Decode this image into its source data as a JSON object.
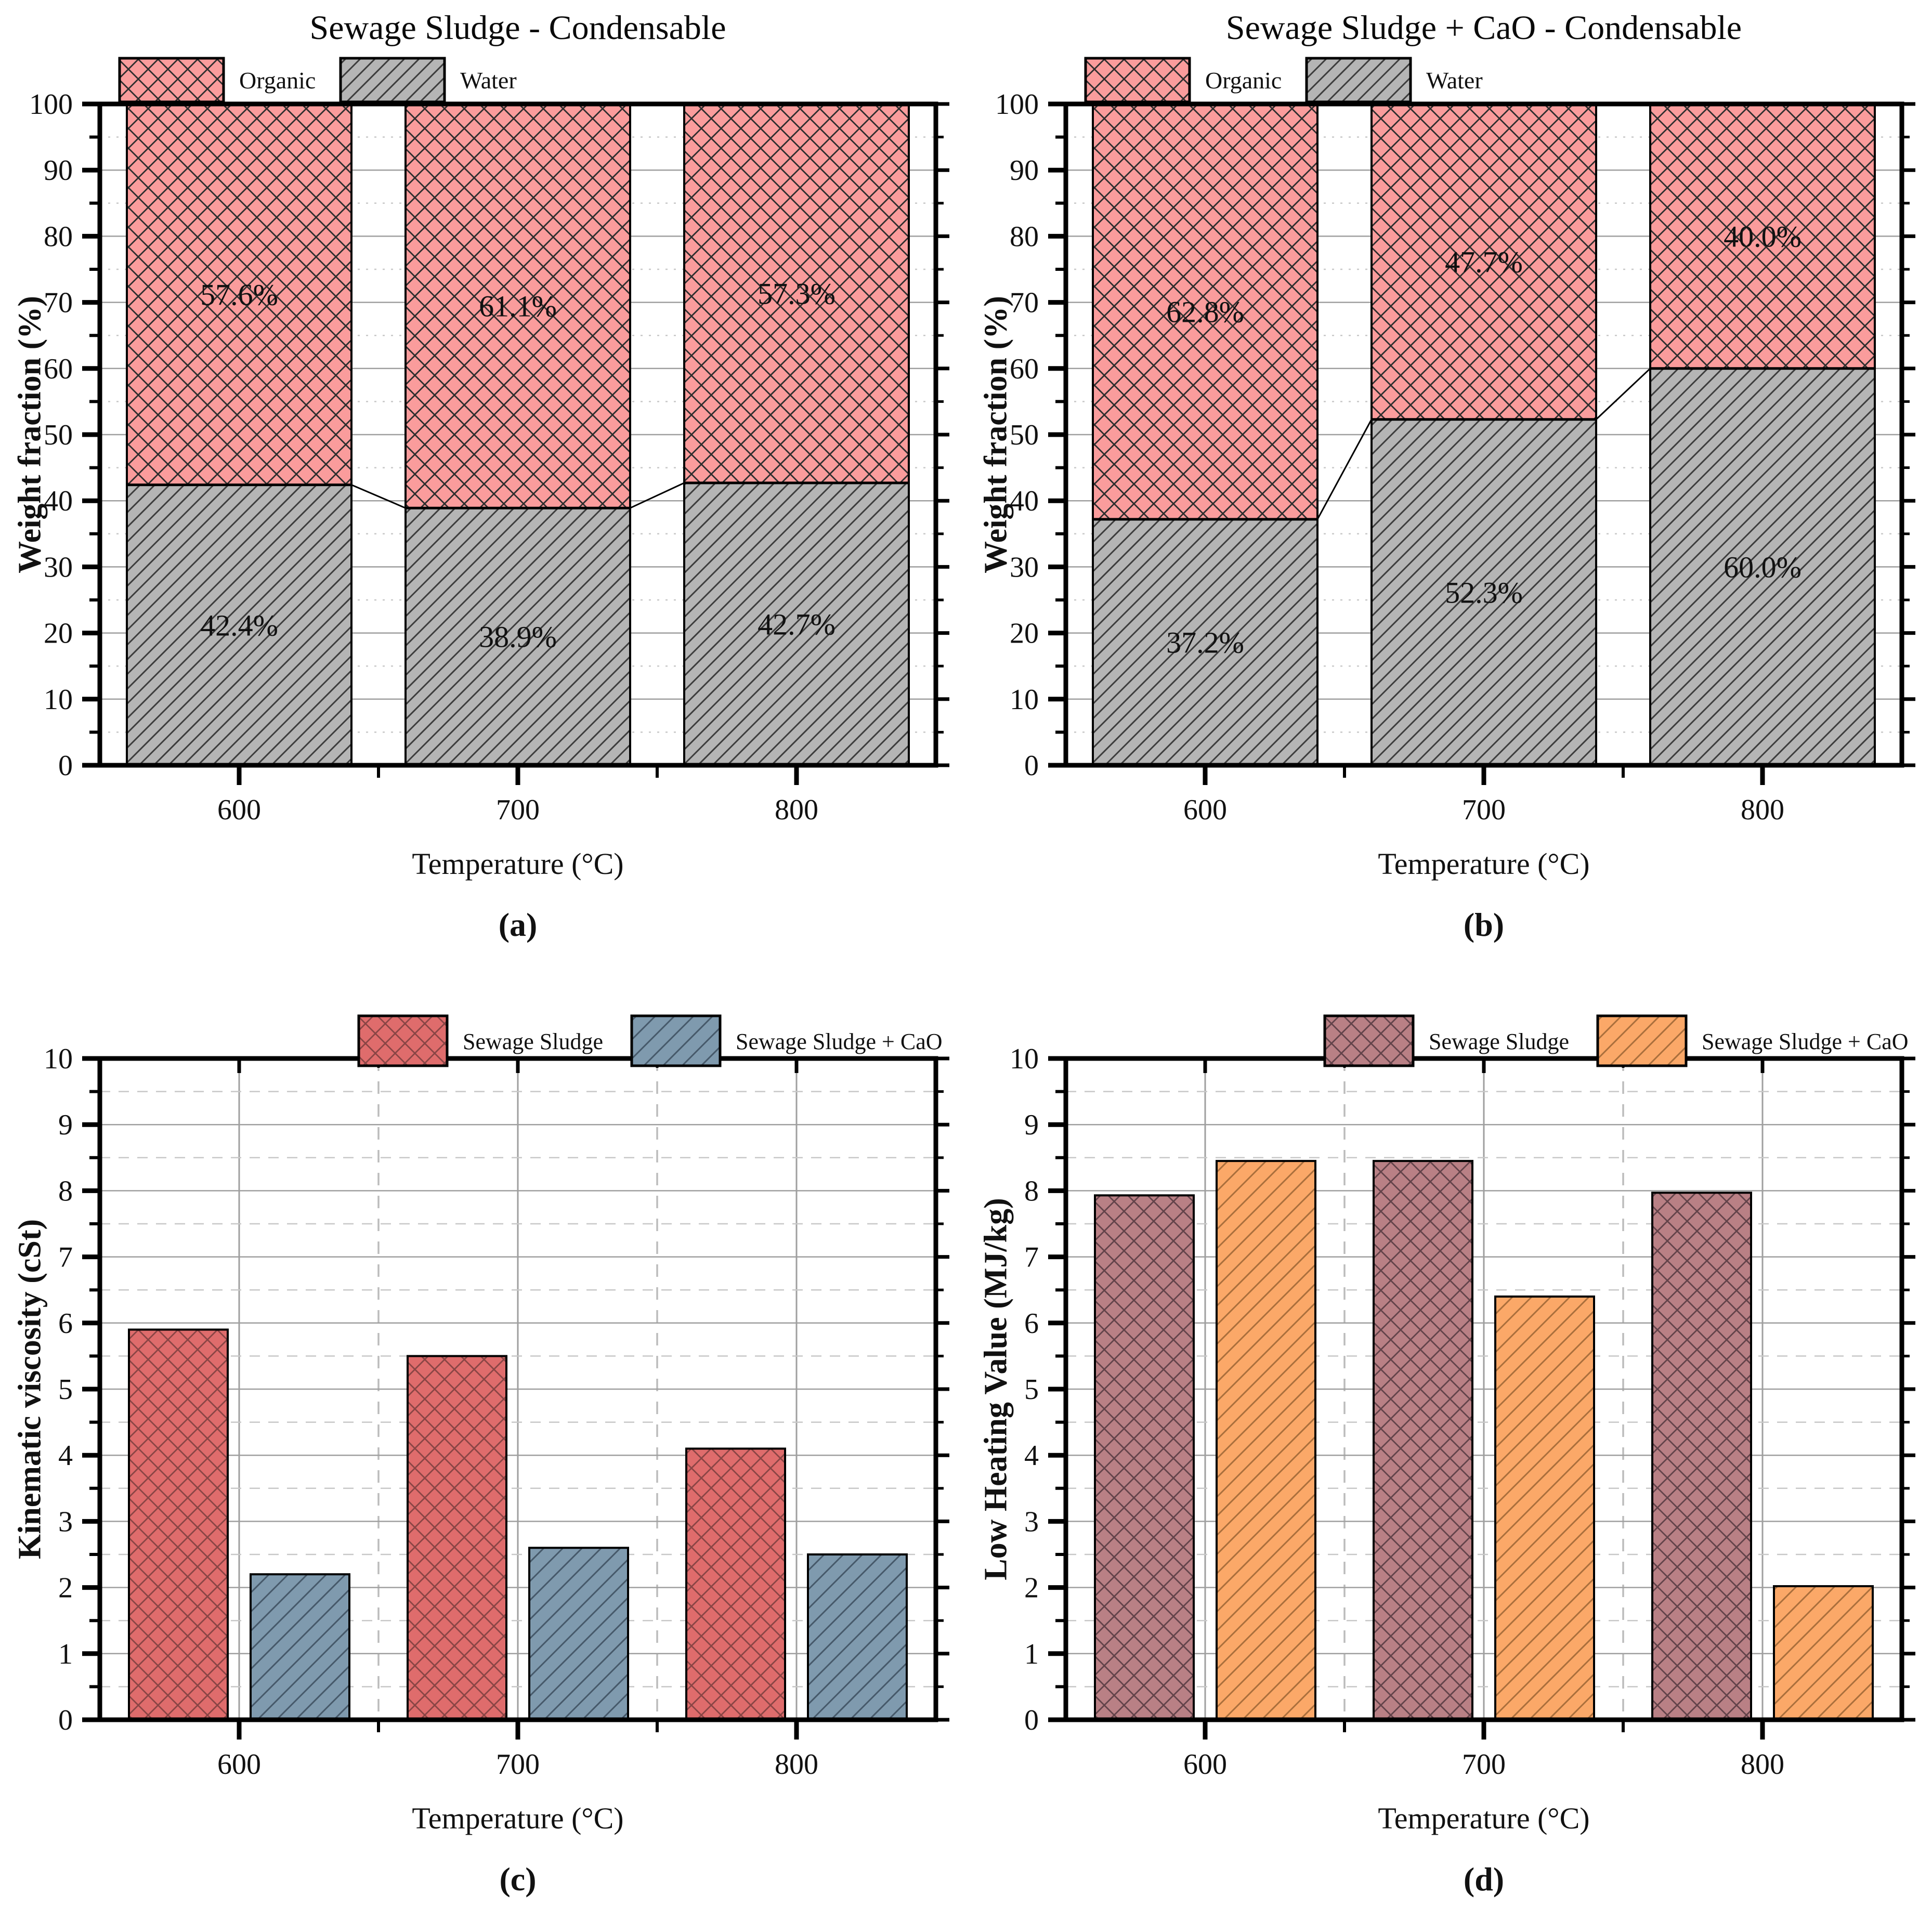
{
  "page": {
    "background": "#ffffff"
  },
  "colors": {
    "axis": "#000000",
    "grid_major": "#9f9f9f",
    "grid_minor": "#c8c8c8",
    "connector": "#000000",
    "organic_pink": "#fa9c9c",
    "water_gray": "#b5b5b5",
    "viscosity_red": "#df6c6c",
    "viscosity_blue": "#7f9aae",
    "lhv_maroon": "#b98085",
    "lhv_orange": "#fba868"
  },
  "chart_data": [
    {
      "type": "bar",
      "variant": "stacked",
      "title": "Sewage Sludge - Condensable",
      "caption": "(a)",
      "xlabel": "Temperature (°C)",
      "ylabel": "Weight fraction (%)",
      "categories": [
        "600",
        "700",
        "800"
      ],
      "ylim": [
        0,
        100
      ],
      "ymajor_step": 10,
      "yminor_step": 5,
      "yticks": [
        0,
        10,
        20,
        30,
        40,
        50,
        60,
        70,
        80,
        90,
        100
      ],
      "grid": {
        "h_major": "solid",
        "h_minor": "dotted",
        "vertical": false
      },
      "legend_position": "top-left",
      "legend": [
        {
          "label": "Organic",
          "series": 1
        },
        {
          "label": "Water",
          "series": 0
        }
      ],
      "connectors": true,
      "series": [
        {
          "name": "Water",
          "values": [
            42.4,
            38.9,
            42.7
          ],
          "bar_labels": [
            "42.4%",
            "38.9%",
            "42.7%"
          ],
          "fill": "#b5b5b5",
          "hatch": "diag",
          "hatch_color": "#3d3d3d",
          "hatch_gap": 20
        },
        {
          "name": "Organic",
          "values": [
            57.6,
            61.1,
            57.3
          ],
          "bar_labels": [
            "57.6%",
            "61.1%",
            "57.3%"
          ],
          "fill": "#fa9c9c",
          "hatch": "cross",
          "hatch_color": "#2e2e2e",
          "hatch_gap": 38
        }
      ]
    },
    {
      "type": "bar",
      "variant": "stacked",
      "title": "Sewage Sludge + CaO - Condensable",
      "caption": "(b)",
      "xlabel": "Temperature (°C)",
      "ylabel": "Weight fraction (%)",
      "categories": [
        "600",
        "700",
        "800"
      ],
      "ylim": [
        0,
        100
      ],
      "ymajor_step": 10,
      "yminor_step": 5,
      "yticks": [
        0,
        10,
        20,
        30,
        40,
        50,
        60,
        70,
        80,
        90,
        100
      ],
      "grid": {
        "h_major": "solid",
        "h_minor": "dotted",
        "vertical": false
      },
      "legend_position": "top-left",
      "legend": [
        {
          "label": "Organic",
          "series": 1
        },
        {
          "label": "Water",
          "series": 0
        }
      ],
      "connectors": true,
      "series": [
        {
          "name": "Water",
          "values": [
            37.2,
            52.3,
            60.0
          ],
          "bar_labels": [
            "37.2%",
            "52.3%",
            "60.0%"
          ],
          "fill": "#b5b5b5",
          "hatch": "diag",
          "hatch_color": "#3d3d3d",
          "hatch_gap": 20
        },
        {
          "name": "Organic",
          "values": [
            62.8,
            47.7,
            40.0
          ],
          "bar_labels": [
            "62.8%",
            "47.7%",
            "40.0%"
          ],
          "fill": "#fa9c9c",
          "hatch": "cross",
          "hatch_color": "#2e2e2e",
          "hatch_gap": 38
        }
      ]
    },
    {
      "type": "bar",
      "variant": "grouped",
      "title": "",
      "caption": "(c)",
      "xlabel": "Temperature (°C)",
      "ylabel": "Kinematic viscosity (cSt)",
      "categories": [
        "600",
        "700",
        "800"
      ],
      "ylim": [
        0,
        10
      ],
      "ymajor_step": 1,
      "yminor_step": 0.5,
      "yticks": [
        0,
        1,
        2,
        3,
        4,
        5,
        6,
        7,
        8,
        9,
        10
      ],
      "grid": {
        "h_major": "solid",
        "h_minor": "dashed",
        "vertical": true
      },
      "legend_position": "top-right",
      "legend": [
        {
          "label": "Sewage Sludge",
          "series": 0
        },
        {
          "label": "Sewage Sludge + CaO",
          "series": 1
        }
      ],
      "connectors": false,
      "series": [
        {
          "name": "Sewage Sludge",
          "values": [
            5.9,
            5.5,
            4.1
          ],
          "fill": "#df6c6c",
          "hatch": "cross",
          "hatch_color": "#8a4545",
          "hatch_gap": 38
        },
        {
          "name": "Sewage Sludge + CaO",
          "values": [
            2.2,
            2.6,
            2.5
          ],
          "fill": "#7f9aae",
          "hatch": "diag",
          "hatch_color": "#46596a",
          "hatch_gap": 26
        }
      ]
    },
    {
      "type": "bar",
      "variant": "grouped",
      "title": "",
      "caption": "(d)",
      "xlabel": "Temperature (°C)",
      "ylabel": "Low Heating Value (MJ/kg)",
      "categories": [
        "600",
        "700",
        "800"
      ],
      "ylim": [
        0,
        10
      ],
      "ymajor_step": 1,
      "yminor_step": 0.5,
      "yticks": [
        0,
        1,
        2,
        3,
        4,
        5,
        6,
        7,
        8,
        9,
        10
      ],
      "grid": {
        "h_major": "solid",
        "h_minor": "dashed",
        "vertical": true
      },
      "legend_position": "top-right",
      "legend": [
        {
          "label": "Sewage Sludge",
          "series": 0
        },
        {
          "label": "Sewage Sludge + CaO",
          "series": 1
        }
      ],
      "connectors": false,
      "series": [
        {
          "name": "Sewage Sludge",
          "values": [
            7.93,
            8.45,
            7.97
          ],
          "fill": "#b98085",
          "hatch": "cross",
          "hatch_color": "#63434a",
          "hatch_gap": 38
        },
        {
          "name": "Sewage Sludge + CaO",
          "values": [
            8.45,
            6.4,
            2.02
          ],
          "fill": "#fba868",
          "hatch": "diag",
          "hatch_color": "#aa6f3c",
          "hatch_gap": 26
        }
      ]
    }
  ]
}
